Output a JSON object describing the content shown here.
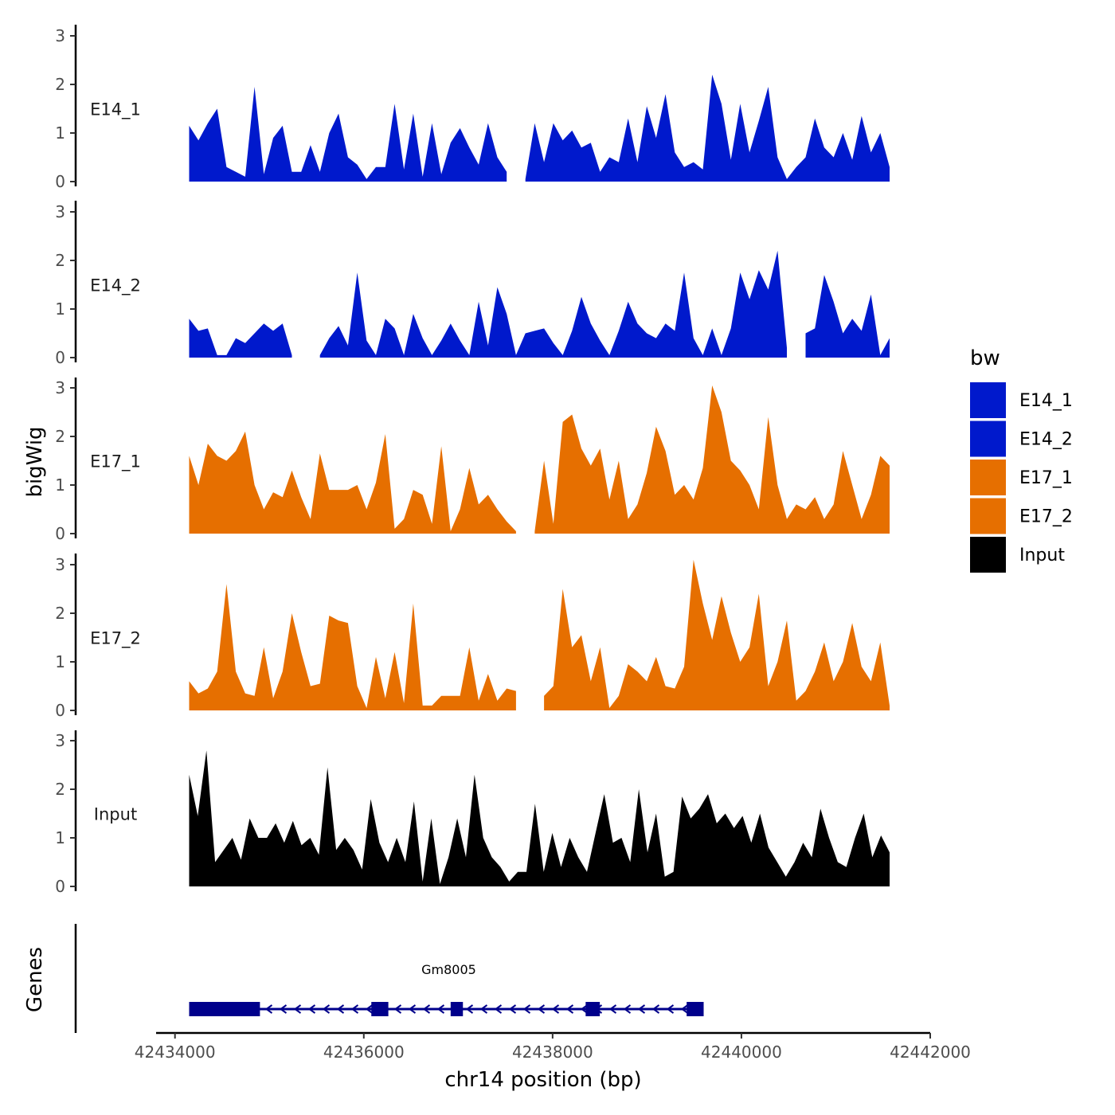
{
  "chart_data": {
    "type": "area",
    "ylabel": "bigWig",
    "xlabel": "chr14 position (bp)",
    "xlim": [
      42433800,
      42442000
    ],
    "x_ticks": [
      42434000,
      42436000,
      42438000,
      42440000,
      42442000
    ],
    "x_tick_labels": [
      "42434000",
      "42436000",
      "42438000",
      "42440000",
      "42442000"
    ],
    "ylim": [
      0,
      3.2
    ],
    "y_ticks": [
      0,
      1,
      2,
      3
    ],
    "y_tick_labels": [
      "0",
      "1",
      "2",
      "3"
    ],
    "legend": {
      "title": "bw",
      "position": "right",
      "entries": [
        {
          "label": "E14_1",
          "color": "#0019cc"
        },
        {
          "label": "E14_2",
          "color": "#0019cc"
        },
        {
          "label": "E17_1",
          "color": "#e66f00"
        },
        {
          "label": "E17_2",
          "color": "#e66f00"
        },
        {
          "label": "Input",
          "color": "#000000"
        }
      ]
    },
    "series": [
      {
        "name": "E14_1",
        "color": "#0019cc",
        "x_start": 42434150,
        "x_end": 42441570,
        "values": [
          1.15,
          0.85,
          1.2,
          1.5,
          0.3,
          0.2,
          0.1,
          1.95,
          0.15,
          0.9,
          1.15,
          0.2,
          0.2,
          0.75,
          0.2,
          1.0,
          1.4,
          0.5,
          0.35,
          0.05,
          0.3,
          0.3,
          1.6,
          0.25,
          1.4,
          0.1,
          1.2,
          0.15,
          0.8,
          1.1,
          0.7,
          0.35,
          1.2,
          0.5,
          0.2,
          null,
          0.05,
          1.2,
          0.4,
          1.2,
          0.85,
          1.05,
          0.7,
          0.8,
          0.2,
          0.5,
          0.4,
          1.3,
          0.4,
          1.55,
          0.9,
          1.8,
          0.6,
          0.3,
          0.4,
          0.25,
          2.2,
          1.6,
          0.45,
          1.6,
          0.6,
          1.25,
          1.95,
          0.5,
          0.05,
          0.3,
          0.5,
          1.3,
          0.7,
          0.5,
          1.0,
          0.45,
          1.35,
          0.6,
          1.0,
          0.3
        ]
      },
      {
        "name": "E14_2",
        "color": "#0019cc",
        "x_start": 42434150,
        "x_end": 42441570,
        "values": [
          0.8,
          0.55,
          0.6,
          0.05,
          0.05,
          0.4,
          0.3,
          0.5,
          0.7,
          0.55,
          0.7,
          0.05,
          null,
          null,
          0.05,
          0.4,
          0.65,
          0.25,
          1.75,
          0.35,
          0.05,
          0.8,
          0.6,
          0.05,
          0.9,
          0.4,
          0.05,
          0.35,
          0.7,
          0.35,
          0.05,
          1.15,
          0.25,
          1.45,
          0.9,
          0.05,
          0.5,
          0.55,
          0.6,
          0.3,
          0.05,
          0.55,
          1.25,
          0.7,
          0.35,
          0.05,
          0.55,
          1.15,
          0.7,
          0.5,
          0.4,
          0.7,
          0.55,
          1.75,
          0.4,
          0.05,
          0.6,
          0.05,
          0.6,
          1.75,
          1.2,
          1.8,
          1.4,
          2.2,
          0.2,
          null,
          0.5,
          0.6,
          1.7,
          1.15,
          0.5,
          0.8,
          0.55,
          1.3,
          0.05,
          0.4
        ]
      },
      {
        "name": "E17_1",
        "color": "#e66f00",
        "x_start": 42434150,
        "x_end": 42441570,
        "values": [
          1.6,
          1.0,
          1.85,
          1.6,
          1.5,
          1.7,
          2.1,
          1.0,
          0.5,
          0.85,
          0.75,
          1.3,
          0.75,
          0.3,
          1.65,
          0.9,
          0.9,
          0.9,
          1.0,
          0.5,
          1.05,
          2.05,
          0.1,
          0.3,
          0.9,
          0.8,
          0.2,
          1.8,
          0.05,
          0.5,
          1.35,
          0.6,
          0.8,
          0.5,
          0.25,
          0.05,
          null,
          0.05,
          1.5,
          0.2,
          2.3,
          2.45,
          1.75,
          1.4,
          1.75,
          0.7,
          1.5,
          0.3,
          0.6,
          1.25,
          2.2,
          1.7,
          0.8,
          1.0,
          0.7,
          1.35,
          3.05,
          2.5,
          1.5,
          1.3,
          1.0,
          0.5,
          2.4,
          1.0,
          0.3,
          0.6,
          0.5,
          0.75,
          0.3,
          0.6,
          1.7,
          1.0,
          0.3,
          0.8,
          1.6,
          1.4
        ]
      },
      {
        "name": "E17_2",
        "color": "#e66f00",
        "x_start": 42434150,
        "x_end": 42441570,
        "values": [
          0.6,
          0.35,
          0.45,
          0.8,
          2.6,
          0.8,
          0.35,
          0.3,
          1.3,
          0.25,
          0.8,
          2.0,
          1.2,
          0.5,
          0.55,
          1.95,
          1.85,
          1.8,
          0.5,
          0.05,
          1.1,
          0.25,
          1.2,
          0.15,
          2.2,
          0.1,
          0.1,
          0.3,
          0.3,
          0.3,
          1.3,
          0.2,
          0.75,
          0.2,
          0.45,
          0.4,
          null,
          null,
          0.3,
          0.5,
          2.5,
          1.3,
          1.55,
          0.6,
          1.3,
          0.05,
          0.3,
          0.95,
          0.8,
          0.6,
          1.1,
          0.5,
          0.45,
          0.9,
          3.1,
          2.2,
          1.45,
          2.35,
          1.6,
          1.0,
          1.3,
          2.4,
          0.5,
          1.0,
          1.85,
          0.2,
          0.4,
          0.8,
          1.4,
          0.6,
          1.0,
          1.8,
          0.9,
          0.6,
          1.4,
          0.1
        ]
      },
      {
        "name": "Input",
        "color": "#000000",
        "x_start": 42434150,
        "x_end": 42441570,
        "values": [
          2.3,
          1.45,
          2.8,
          0.5,
          0.75,
          1.0,
          0.55,
          1.4,
          1.0,
          1.0,
          1.3,
          0.9,
          1.35,
          0.85,
          1.0,
          0.65,
          2.45,
          0.75,
          1.0,
          0.75,
          0.35,
          1.8,
          0.9,
          0.5,
          1.0,
          0.5,
          1.75,
          0.1,
          1.4,
          0.05,
          0.6,
          1.4,
          0.6,
          2.3,
          1.0,
          0.6,
          0.4,
          0.1,
          0.3,
          0.3,
          1.7,
          0.3,
          1.1,
          0.4,
          1.0,
          0.6,
          0.3,
          1.1,
          1.9,
          0.9,
          1.0,
          0.5,
          2.0,
          0.7,
          1.5,
          0.2,
          0.3,
          1.85,
          1.4,
          1.6,
          1.9,
          1.3,
          1.5,
          1.2,
          1.45,
          0.9,
          1.5,
          0.8,
          0.5,
          0.2,
          0.5,
          0.9,
          0.6,
          1.6,
          1.0,
          0.5,
          0.4,
          1.0,
          1.5,
          0.6,
          1.05,
          0.7
        ]
      }
    ],
    "genes_track": {
      "label": "Genes",
      "gene_name": "Gm8005",
      "strand": "-",
      "color": "#00008b",
      "span": [
        42434150,
        42439600
      ],
      "exons": [
        [
          42434150,
          42434900
        ],
        [
          42436080,
          42436260
        ],
        [
          42436920,
          42437050
        ],
        [
          42438350,
          42438500
        ],
        [
          42439420,
          42439600
        ]
      ]
    }
  }
}
